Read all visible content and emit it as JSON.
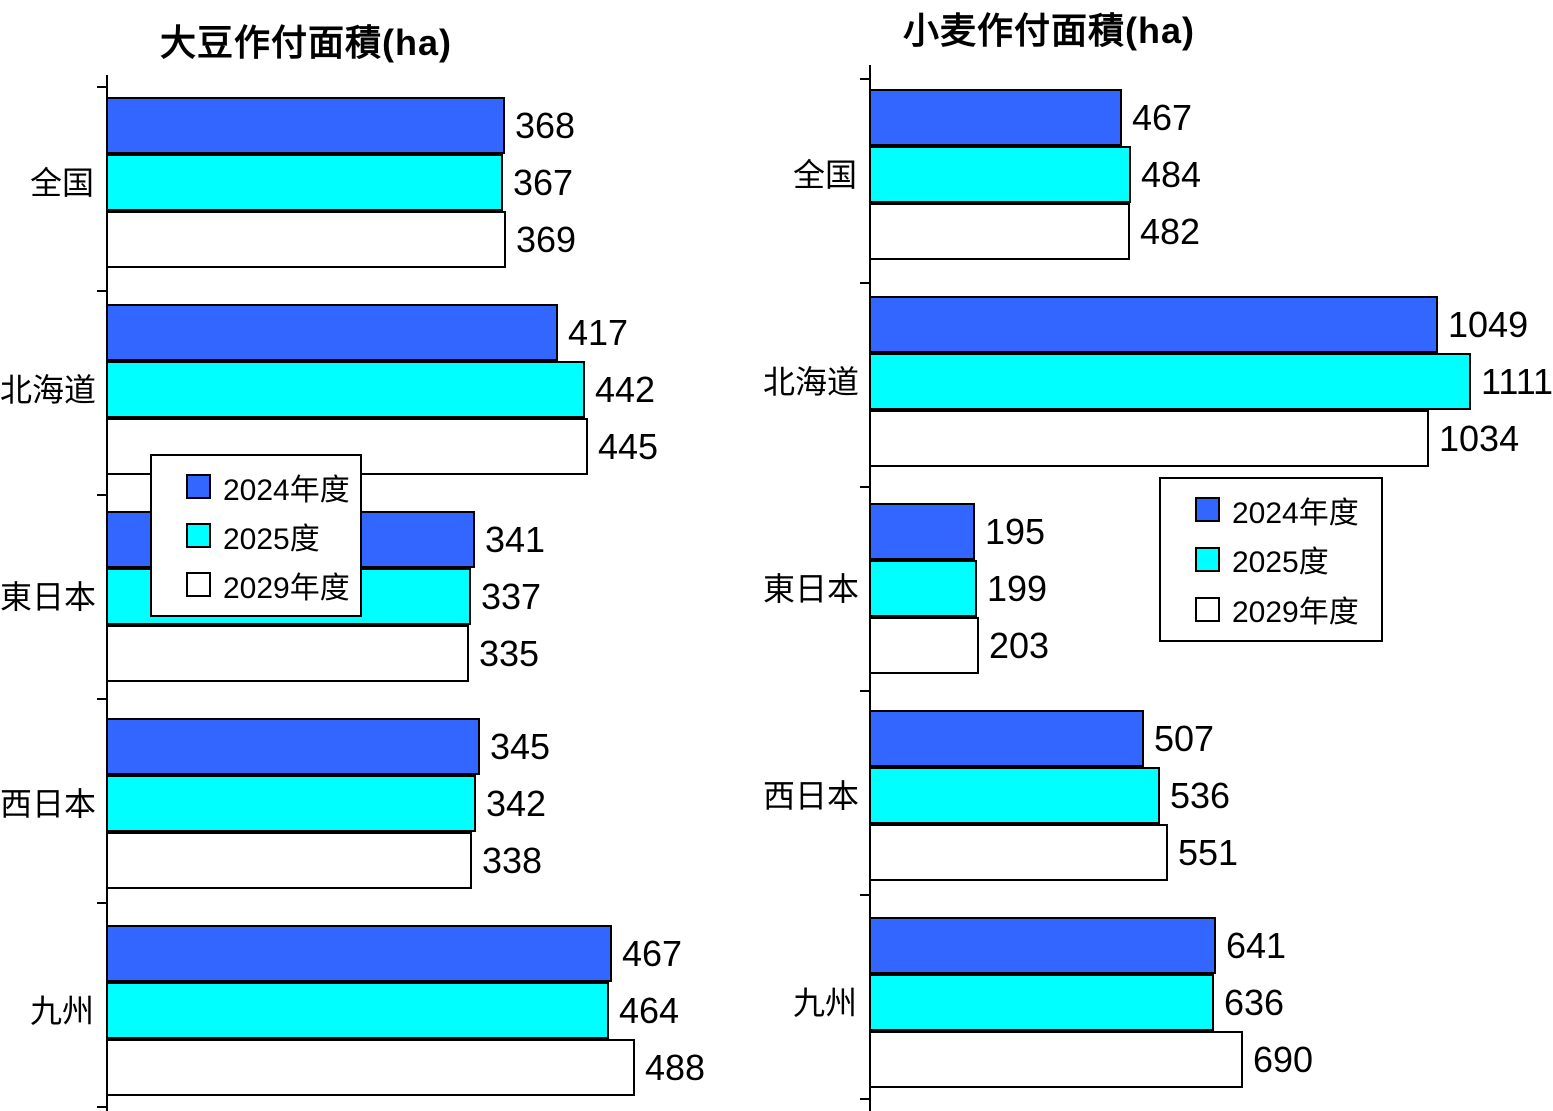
{
  "page": {
    "background": "#FFFFFF"
  },
  "chart_data": [
    {
      "type": "bar",
      "orientation": "horizontal",
      "title": "大豆作付面積(ha)",
      "unit": "ha",
      "categories": [
        "全国",
        "北海道",
        "東日本",
        "西日本",
        "九州"
      ],
      "series": [
        {
          "name": "2024年度",
          "color": "#3366FF",
          "values": [
            368,
            417,
            341,
            345,
            467
          ]
        },
        {
          "name": "2025度",
          "color": "#00FFFF",
          "values": [
            367,
            442,
            337,
            342,
            464
          ]
        },
        {
          "name": "2029年度",
          "color": "#FFFFFF",
          "values": [
            369,
            445,
            335,
            338,
            488
          ]
        }
      ],
      "xlim": [
        0,
        500
      ],
      "grid": false,
      "legend_position": "inside-lower-left",
      "value_labels": true
    },
    {
      "type": "bar",
      "orientation": "horizontal",
      "title": "小麦作付面積(ha)",
      "unit": "ha",
      "categories": [
        "全国",
        "北海道",
        "東日本",
        "西日本",
        "九州"
      ],
      "series": [
        {
          "name": "2024年度",
          "color": "#3366FF",
          "values": [
            467,
            1049,
            195,
            507,
            641
          ]
        },
        {
          "name": "2025度",
          "color": "#00FFFF",
          "values": [
            484,
            1111,
            199,
            536,
            636
          ]
        },
        {
          "name": "2029年度",
          "color": "#FFFFFF",
          "values": [
            482,
            1034,
            203,
            551,
            690
          ]
        }
      ],
      "xlim": [
        0,
        1160
      ],
      "grid": false,
      "legend_position": "inside-middle-right",
      "value_labels": true
    }
  ]
}
